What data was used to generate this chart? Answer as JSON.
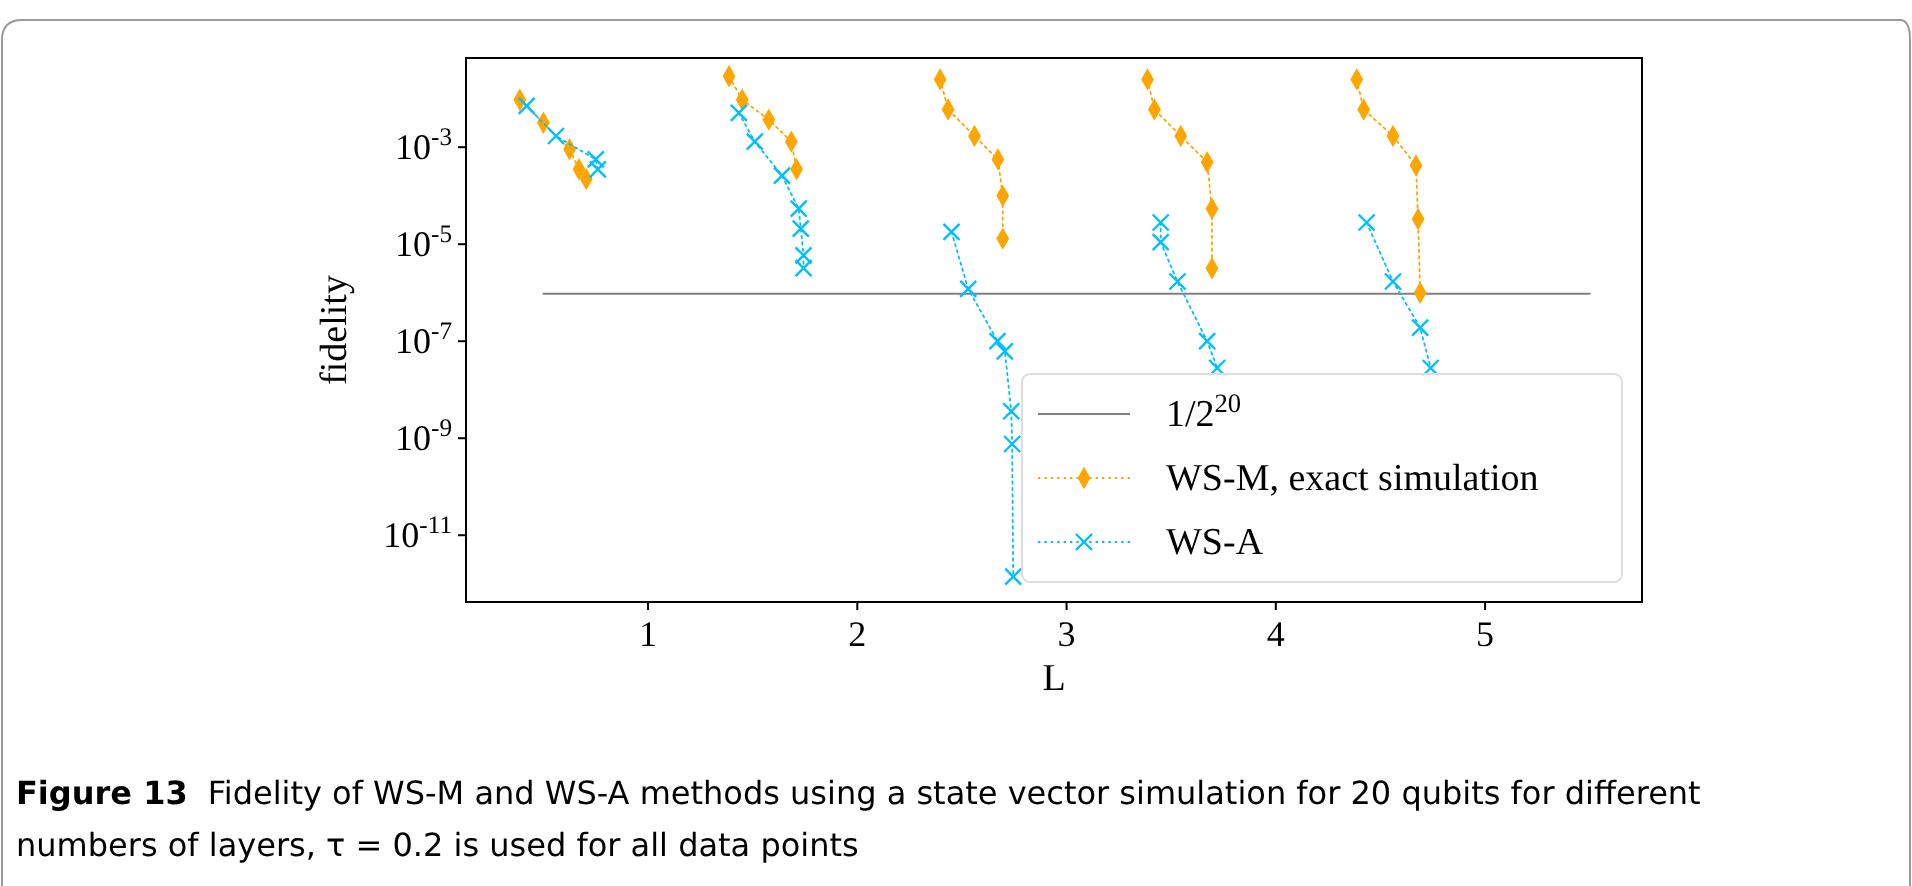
{
  "chart_data": {
    "type": "line",
    "xlabel": "L",
    "ylabel": "fidelity",
    "log": "y",
    "xlim": [
      0.13,
      5.75
    ],
    "xticks": [
      1,
      2,
      3,
      4,
      5
    ],
    "ylim": [
      4.2e-13,
      0.069
    ],
    "yticks": [
      {
        "value": 0.001,
        "label": "10$^{-3}$"
      },
      {
        "value": 1e-05,
        "label": "10$^{-5}$"
      },
      {
        "value": 1e-07,
        "label": "10$^{-7}$"
      },
      {
        "value": 1e-09,
        "label": "10$^{-9}$"
      },
      {
        "value": 1e-11,
        "label": "10$^{-11}$"
      }
    ],
    "grid": false,
    "legend": "bottom right",
    "series": [
      {
        "name": "1/2$^{20}$",
        "color": "#808080",
        "marker": "none",
        "line_style": "solid",
        "x": [
          0.5,
          5.5
        ],
        "values": [
          9.54e-07,
          9.54e-07
        ]
      },
      {
        "name": "WS-M, exact simulation",
        "color": "#ffa500",
        "marker": "diamond",
        "line_style": "dotted",
        "x": [
          0.387,
          0.5,
          0.625,
          0.67,
          0.705,
          1.0,
          1.387,
          1.45,
          1.577,
          1.685,
          1.71,
          2.0,
          2.396,
          2.434,
          2.56,
          2.672,
          2.695,
          2.695,
          3.0,
          3.387,
          3.42,
          3.546,
          3.672,
          3.695,
          3.695,
          4.0,
          4.387,
          4.42,
          4.56,
          4.67,
          4.68,
          4.69
        ],
        "values": [
          0.0095,
          0.0032,
          0.00091,
          0.00035,
          0.00022,
          null,
          0.029,
          0.0095,
          0.0037,
          0.0013,
          0.00035,
          null,
          0.025,
          0.006,
          0.0017,
          0.00056,
          0.0001,
          1.3e-05,
          null,
          0.025,
          0.006,
          0.0017,
          0.00049,
          5.4e-05,
          3.2e-06,
          null,
          0.025,
          0.006,
          0.0017,
          0.00042,
          3.3e-05,
          1e-06
        ]
      },
      {
        "name": "WS-A",
        "color": "#00bfff",
        "marker": "cross",
        "line_style": "dotted",
        "x": [
          0.42,
          0.56,
          0.75,
          0.76,
          1.0,
          1.434,
          1.51,
          1.64,
          1.72,
          1.73,
          1.743,
          1.743,
          2.0,
          2.45,
          2.53,
          2.67,
          2.705,
          2.736,
          2.74,
          2.745,
          3.0,
          3.45,
          3.45,
          3.53,
          3.672,
          3.72,
          4.0,
          4.434,
          4.56,
          4.69,
          4.74
        ],
        "values": [
          0.0071,
          0.0017,
          0.00056,
          0.00035,
          null,
          0.0051,
          0.0013,
          0.00026,
          5.4e-05,
          2.1e-05,
          5.9e-06,
          3.2e-06,
          null,
          1.8e-05,
          1.2e-06,
          1e-07,
          6.2e-08,
          3.6e-09,
          7.6e-10,
          1.4e-12,
          null,
          2.8e-05,
          1.1e-05,
          1.7e-06,
          1e-07,
          2.8e-08,
          null,
          2.8e-05,
          1.7e-06,
          1.9e-07,
          2.8e-08
        ]
      }
    ],
    "annotations": [
      "Figure 13",
      "Fidelity of WS-M and WS-A methods using a state vector simulation for 20 qubits for different numbers of layers, τ = 0.2 is used for all data points"
    ]
  }
}
